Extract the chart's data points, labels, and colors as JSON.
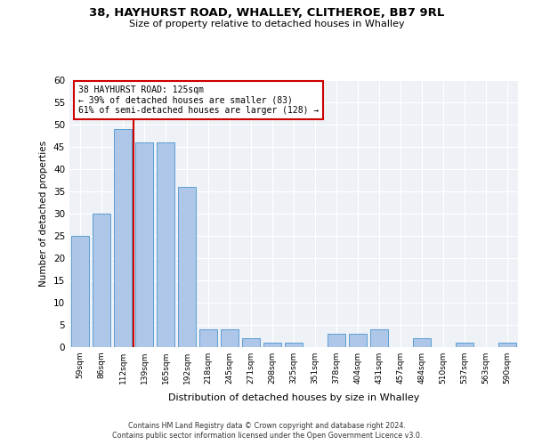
{
  "title_line1": "38, HAYHURST ROAD, WHALLEY, CLITHEROE, BB7 9RL",
  "title_line2": "Size of property relative to detached houses in Whalley",
  "xlabel": "Distribution of detached houses by size in Whalley",
  "ylabel": "Number of detached properties",
  "bar_labels": [
    "59sqm",
    "86sqm",
    "112sqm",
    "139sqm",
    "165sqm",
    "192sqm",
    "218sqm",
    "245sqm",
    "271sqm",
    "298sqm",
    "325sqm",
    "351sqm",
    "378sqm",
    "404sqm",
    "431sqm",
    "457sqm",
    "484sqm",
    "510sqm",
    "537sqm",
    "563sqm",
    "590sqm"
  ],
  "bar_values": [
    25,
    30,
    49,
    46,
    46,
    36,
    4,
    4,
    2,
    1,
    1,
    0,
    3,
    3,
    4,
    0,
    2,
    0,
    1,
    0,
    1
  ],
  "bar_color": "#aec6e8",
  "bar_edgecolor": "#5a9fd4",
  "ylim": [
    0,
    60
  ],
  "yticks": [
    0,
    5,
    10,
    15,
    20,
    25,
    30,
    35,
    40,
    45,
    50,
    55,
    60
  ],
  "annotation_line1": "38 HAYHURST ROAD: 125sqm",
  "annotation_line2": "← 39% of detached houses are smaller (83)",
  "annotation_line3": "61% of semi-detached houses are larger (128) →",
  "vline_color": "#cc0000",
  "background_color": "#eef2f7",
  "grid_color": "#ffffff",
  "footnote1": "Contains HM Land Registry data © Crown copyright and database right 2024.",
  "footnote2": "Contains public sector information licensed under the Open Government Licence v3.0."
}
